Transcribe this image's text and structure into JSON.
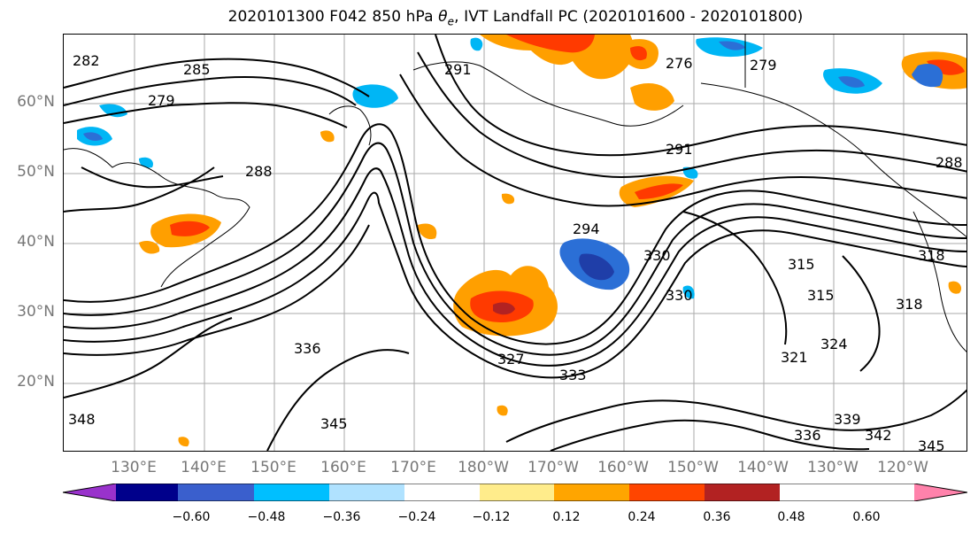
{
  "title": "2020101300 F042 850 hPa θe, IVT Landfall PC (2020101600 - 2020101800)",
  "map": {
    "lat_labels": [
      "60°N",
      "50°N",
      "40°N",
      "30°N",
      "20°N"
    ],
    "lon_labels": [
      "130°E",
      "140°E",
      "150°E",
      "160°E",
      "170°E",
      "180°W",
      "170°W",
      "160°W",
      "150°W",
      "140°W",
      "130°W",
      "120°W"
    ],
    "contour_labels": [
      "282",
      "285",
      "279",
      "291",
      "276",
      "279",
      "288",
      "288",
      "291",
      "294",
      "330",
      "315",
      "315",
      "318",
      "318",
      "336",
      "345",
      "333",
      "324",
      "321",
      "342",
      "345",
      "348",
      "336",
      "339",
      "330",
      "327"
    ],
    "shading_colors": {
      "strong_negative": "#1f3ea8",
      "negative": "#2b6fd6",
      "light_negative": "#00b6f5",
      "very_light_negative": "#aee3fb",
      "light_positive": "#ffe98a",
      "positive": "#ff9f00",
      "strong_positive": "#ff3a00",
      "very_strong_positive": "#b22222"
    }
  },
  "colorbar": {
    "ticks": [
      "−0.60",
      "−0.48",
      "−0.36",
      "−0.24",
      "−0.12",
      "0.12",
      "0.24",
      "0.36",
      "0.48",
      "0.60"
    ],
    "colors": [
      "#9932cc",
      "#00008b",
      "#3a5fcd",
      "#00bfff",
      "#b0e2ff",
      "#ffffff",
      "#ffec8b",
      "#ffa500",
      "#ff4500",
      "#b22222",
      "#ff82ab"
    ]
  }
}
